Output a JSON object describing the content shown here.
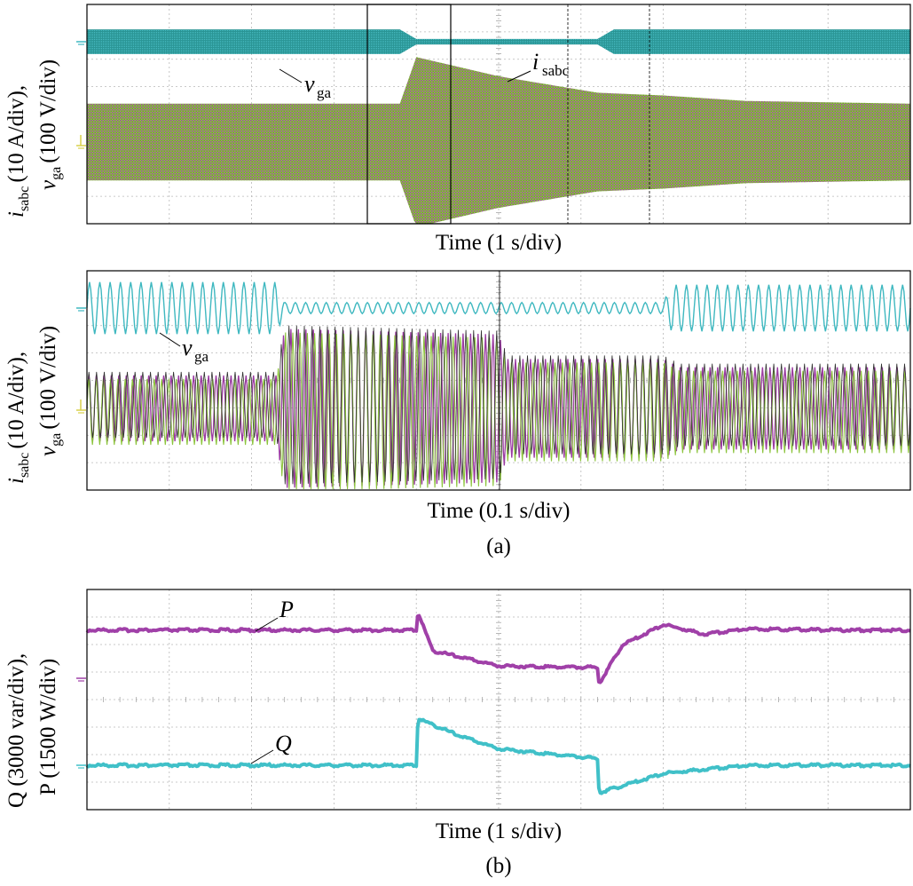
{
  "panels": {
    "a1": {
      "ylabel_current_main": "i",
      "ylabel_current_sub": "sabc",
      "ylabel_current_scale": "(10 A/div),",
      "ylabel_voltage_main": "v",
      "ylabel_voltage_sub": "ga",
      "ylabel_voltage_scale": "(100 V/div)",
      "xlabel": "Time (1 s/div)",
      "annotation_v_main": "v",
      "annotation_v_sub": "ga",
      "annotation_i_main": "i",
      "annotation_i_sub": "sabc"
    },
    "a2": {
      "ylabel_current_main": "i",
      "ylabel_current_sub": "sabc",
      "ylabel_current_scale": "(10 A/div),",
      "ylabel_voltage_main": "v",
      "ylabel_voltage_sub": "ga",
      "ylabel_voltage_scale": "(100 V/div)",
      "xlabel": "Time (0.1 s/div)",
      "annotation_v_main": "v",
      "annotation_v_sub": "ga"
    },
    "b": {
      "ylabel_q": "Q (3000 var/div),",
      "ylabel_p": "P (1500 W/div)",
      "xlabel": "Time (1 s/div)",
      "annotation_p": "P",
      "annotation_q": "Q"
    }
  },
  "captions": {
    "a": "(a)",
    "b": "(b)"
  },
  "colors": {
    "voltage": "#3fb8c0",
    "voltage_dark": "#1f8f8f",
    "current_purple": "#9a3aa0",
    "current_green": "#8cc43c",
    "current_yellow": "#d8d04a",
    "P": "#a040a8",
    "Q": "#40c0c8"
  },
  "chart_data": [
    {
      "type": "line",
      "title": "",
      "xlabel": "Time (1 s/div)",
      "ylabel": "i_sabc (10 A/div), v_ga (100 V/div)",
      "x_divisions": 10,
      "y_divisions": 8,
      "grid": true,
      "xlim": [
        0,
        10
      ],
      "series": [
        {
          "name": "v_ga",
          "unit": "V/div",
          "x": [
            0,
            3.8,
            4.0,
            6.2,
            6.4,
            10
          ],
          "amplitude_div": [
            0.45,
            0.45,
            0.1,
            0.1,
            0.45,
            0.45
          ]
        },
        {
          "name": "i_sabc",
          "unit": "A/div",
          "x": [
            0,
            3.8,
            4.0,
            5.0,
            6.0,
            6.2,
            7.0,
            8.0,
            10
          ],
          "amplitude_div": [
            1.4,
            1.4,
            3.1,
            2.4,
            1.9,
            1.8,
            1.7,
            1.5,
            1.4
          ]
        }
      ]
    },
    {
      "type": "line",
      "title": "",
      "xlabel": "Time (0.1 s/div)",
      "ylabel": "i_sabc (10 A/div), v_ga (100 V/div)",
      "x_divisions": 10,
      "y_divisions": 8,
      "grid": true,
      "xlim": [
        0,
        1.0
      ],
      "series": [
        {
          "name": "v_ga",
          "unit": "V/div",
          "x": [
            0,
            0.23,
            0.24,
            0.7,
            0.71,
            1.0
          ],
          "amplitude_div": [
            0.95,
            0.95,
            0.2,
            0.2,
            0.85,
            0.85
          ]
        },
        {
          "name": "i_sabc",
          "unit": "A/div",
          "x": [
            0,
            0.23,
            0.24,
            0.5,
            0.51,
            0.7,
            0.72,
            1.0
          ],
          "amplitude_div": [
            1.2,
            1.2,
            2.9,
            2.7,
            1.8,
            1.8,
            1.5,
            1.5
          ]
        }
      ]
    },
    {
      "type": "line",
      "title": "",
      "xlabel": "Time (1 s/div)",
      "ylabel": "Q (3000 var/div), P (1500 W/div)",
      "x_divisions": 10,
      "y_divisions": 8,
      "grid": true,
      "xlim": [
        0,
        10
      ],
      "series": [
        {
          "name": "P",
          "unit": "div above P ground",
          "x": [
            0,
            4.0,
            4.02,
            4.2,
            5.0,
            6.0,
            6.2,
            6.22,
            6.5,
            7.0,
            7.5,
            8.0,
            9.0,
            10
          ],
          "y": [
            1.75,
            1.75,
            2.4,
            1.0,
            0.45,
            0.4,
            0.4,
            -0.2,
            1.2,
            1.95,
            1.6,
            1.8,
            1.75,
            1.75
          ]
        },
        {
          "name": "Q",
          "unit": "div above Q ground",
          "x": [
            0,
            4.0,
            4.02,
            4.5,
            5.0,
            6.0,
            6.2,
            6.22,
            7.0,
            8.0,
            10
          ],
          "y": [
            0,
            0,
            1.7,
            1.1,
            0.6,
            0.3,
            0.25,
            -1.0,
            -0.3,
            0,
            0
          ]
        }
      ]
    }
  ]
}
